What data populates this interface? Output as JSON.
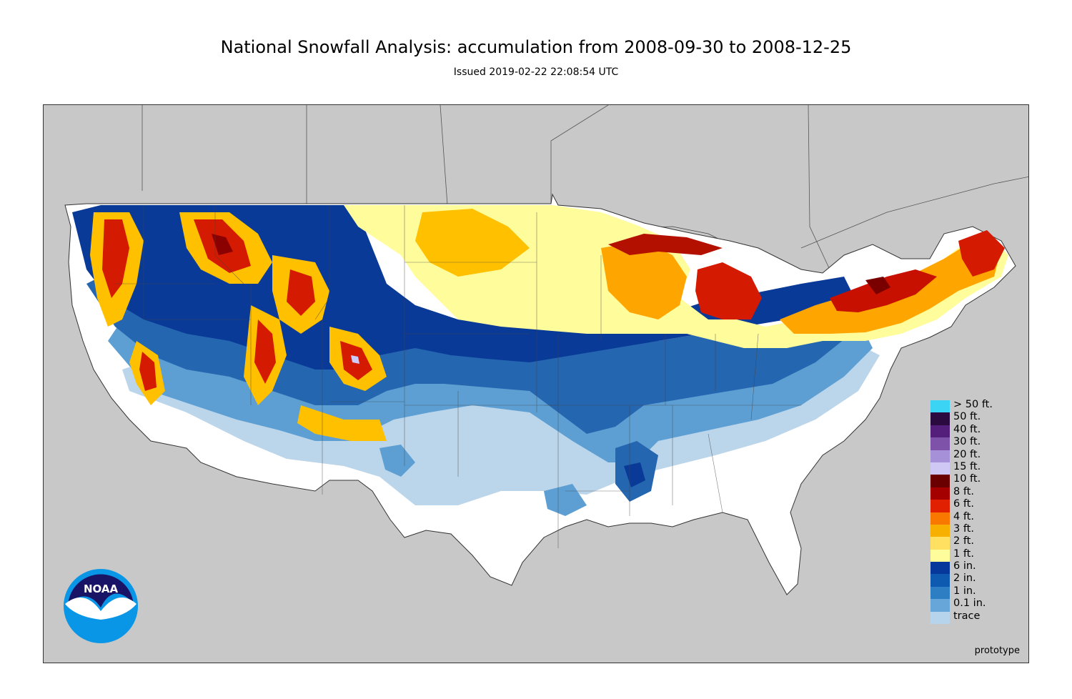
{
  "title": "National Snowfall Analysis: accumulation from 2008-09-30 to 2008-12-25",
  "subtitle": "Issued 2019-02-22 22:08:54 UTC",
  "footer": {
    "prototype": "prototype"
  },
  "logo": {
    "text": "NOAA"
  },
  "colors": {
    "background_land": "#c8c8c8",
    "trace": "#ffffff",
    "light_blue": "#b7d3e9",
    "medium_blue": "#6baed6",
    "blue": "#2f6fb2",
    "navy": "#08306b",
    "yellow": "#ffff99",
    "orange": "#ffa500",
    "red": "#d41a00",
    "dark_red": "#8b0000",
    "lavender": "#ccccff"
  },
  "legend": [
    {
      "label": "> 50 ft.",
      "color": "#3cd4f4"
    },
    {
      "label": "50 ft.",
      "color": "#2b0a40"
    },
    {
      "label": "40 ft.",
      "color": "#541f7a"
    },
    {
      "label": "30 ft.",
      "color": "#7d52a8"
    },
    {
      "label": "20 ft.",
      "color": "#a691d8"
    },
    {
      "label": "15 ft.",
      "color": "#d0c8f4"
    },
    {
      "label": "10 ft.",
      "color": "#6b0000"
    },
    {
      "label": "8 ft.",
      "color": "#a50000"
    },
    {
      "label": "6 ft.",
      "color": "#e02000"
    },
    {
      "label": "4 ft.",
      "color": "#f87800"
    },
    {
      "label": "3 ft.",
      "color": "#f8b000"
    },
    {
      "label": "2 ft.",
      "color": "#ffe060"
    },
    {
      "label": "1 ft.",
      "color": "#fffc9c"
    },
    {
      "label": "6 in.",
      "color": "#06389c"
    },
    {
      "label": "2 in.",
      "color": "#0e5ab0"
    },
    {
      "label": "1 in.",
      "color": "#2e7ec4"
    },
    {
      "label": "0.1 in.",
      "color": "#66a6d8"
    },
    {
      "label": "trace",
      "color": "#b6d4ec"
    }
  ]
}
